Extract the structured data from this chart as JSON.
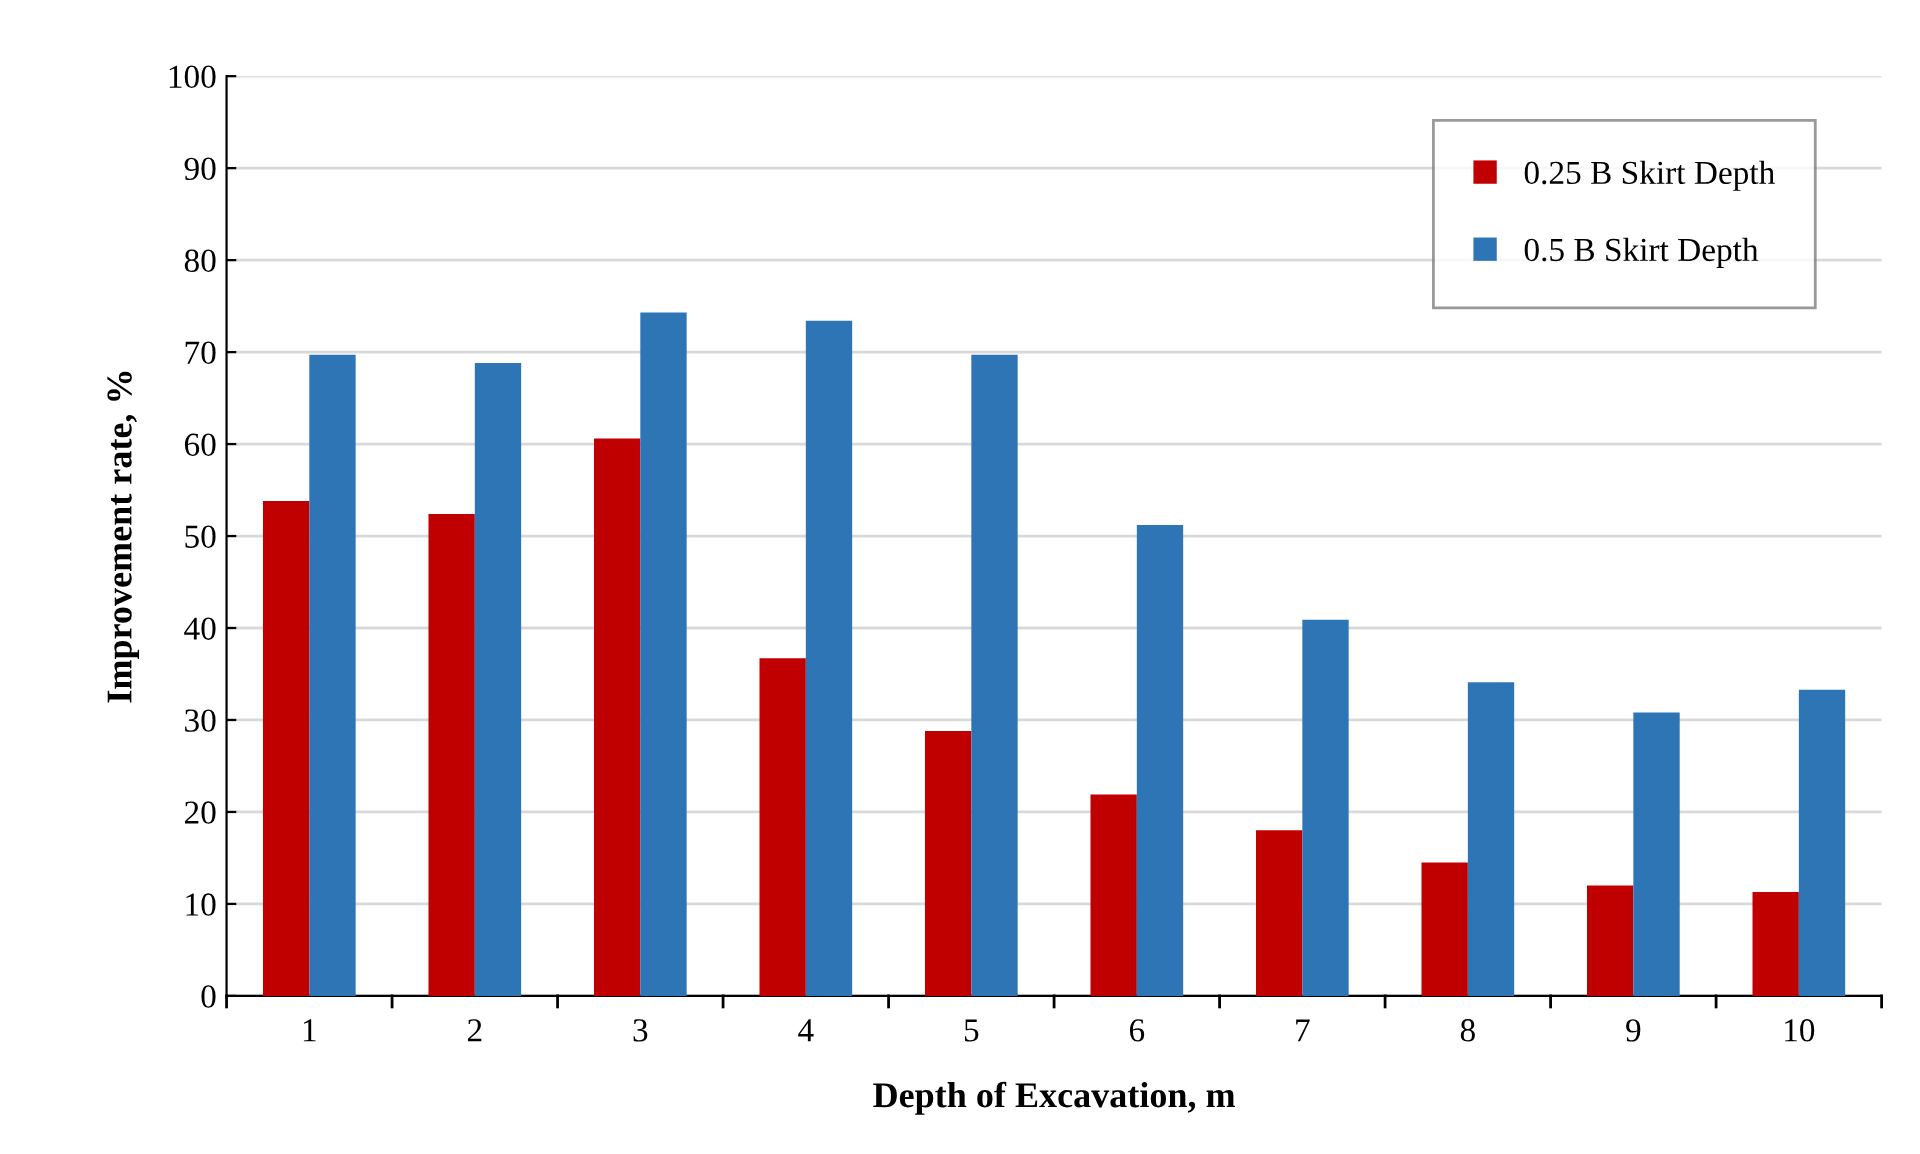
{
  "chart_data": {
    "type": "bar",
    "xlabel": "Depth of Excavation, m",
    "ylabel": "Improvement rate, %",
    "categories": [
      "1",
      "2",
      "3",
      "4",
      "5",
      "6",
      "7",
      "8",
      "9",
      "10"
    ],
    "series": [
      {
        "name": "0.25 B Skirt Depth",
        "color": "#c00000",
        "values": [
          53.8,
          52.4,
          60.6,
          36.7,
          28.8,
          21.9,
          18.0,
          14.5,
          12.0,
          11.3
        ]
      },
      {
        "name": "0.5 B Skirt Depth",
        "color": "#2e75b6",
        "values": [
          69.7,
          68.8,
          74.3,
          73.4,
          69.7,
          51.2,
          40.9,
          34.1,
          30.8,
          33.3
        ]
      }
    ],
    "ylim": [
      0,
      100
    ],
    "yticks": [
      0,
      10,
      20,
      30,
      40,
      50,
      60,
      70,
      80,
      90,
      100
    ],
    "grid": "y",
    "legend": "top right"
  }
}
